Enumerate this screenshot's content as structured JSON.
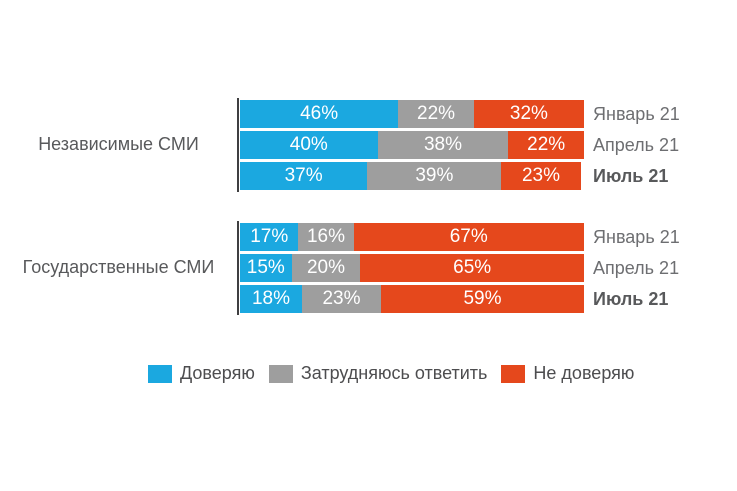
{
  "chart_data": {
    "type": "bar",
    "orientation": "horizontal-stacked",
    "unit": "%",
    "title": "",
    "xlim": [
      0,
      100
    ],
    "grid": false,
    "legend_position": "bottom-center",
    "series": [
      "Доверяю",
      "Затрудняюсь ответить",
      "Не доверяю"
    ],
    "series_colors": [
      "#1BA8E0",
      "#9E9E9E",
      "#E5481C"
    ],
    "groups": [
      {
        "label": "Независимые СМИ",
        "rows": [
          {
            "period": "Январь 21",
            "bold": false,
            "values": [
              46,
              22,
              32
            ],
            "labels": [
              "46%",
              "22%",
              "32%"
            ]
          },
          {
            "period": "Апрель 21",
            "bold": false,
            "values": [
              40,
              38,
              22
            ],
            "labels": [
              "40%",
              "38%",
              "22%"
            ]
          },
          {
            "period": "Июль 21",
            "bold": true,
            "values": [
              37,
              39,
              23
            ],
            "labels": [
              "37%",
              "39%",
              "23%"
            ]
          }
        ]
      },
      {
        "label": "Государственные СМИ",
        "rows": [
          {
            "period": "Январь 21",
            "bold": false,
            "values": [
              17,
              16,
              67
            ],
            "labels": [
              "17%",
              "16%",
              "67%"
            ]
          },
          {
            "period": "Апрель 21",
            "bold": false,
            "values": [
              15,
              20,
              65
            ],
            "labels": [
              "15%",
              "20%",
              "65%"
            ]
          },
          {
            "period": "Июль 21",
            "bold": true,
            "values": [
              18,
              23,
              59
            ],
            "labels": [
              "18%",
              "23%",
              "59%"
            ]
          }
        ]
      }
    ],
    "legend": [
      {
        "label": "Доверяю",
        "color": "#1BA8E0"
      },
      {
        "label": "Затрудняюсь ответить",
        "color": "#9E9E9E"
      },
      {
        "label": "Не доверяю",
        "color": "#E5481C"
      }
    ],
    "style": {
      "value_label_color": "#FFFFFF",
      "period_label_color": "#6D6E71",
      "period_label_bold_color": "#58595B",
      "group_label_color": "#58595B",
      "axis_line_color": "#3F3F41",
      "background": "#FFFFFF"
    }
  }
}
